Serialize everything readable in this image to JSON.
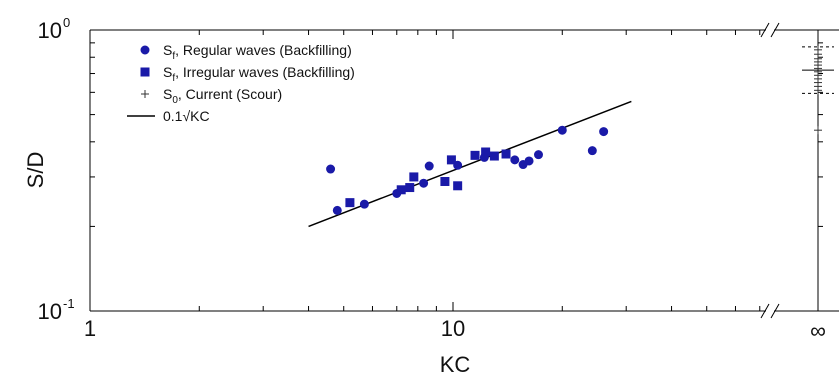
{
  "chart_data": {
    "type": "scatter",
    "xlabel": "KC",
    "ylabel": "S/D",
    "x_scale": "log",
    "y_scale": "log",
    "xlim": [
      1,
      70
    ],
    "ylim": [
      0.1,
      1
    ],
    "x_ticks": [
      {
        "value": 1,
        "label": "1"
      },
      {
        "value": 10,
        "label": "10"
      }
    ],
    "x_infinity_label": "∞",
    "y_ticks": [
      {
        "value": 0.1,
        "base": "10",
        "exp": "-1"
      },
      {
        "value": 1,
        "base": "10",
        "exp": "0"
      }
    ],
    "grid": false,
    "legend_position": "top-left",
    "legend": [
      {
        "id": "regular",
        "sym": "S",
        "sub": "f",
        "text": ", Regular waves (Backfilling)",
        "marker": "circle"
      },
      {
        "id": "irregular",
        "sym": "S",
        "sub": "f",
        "text": ", Irregular waves (Backfilling)",
        "marker": "square"
      },
      {
        "id": "current",
        "sym": "S",
        "sub": "0",
        "text": ", Current (Scour)",
        "marker": "plus"
      },
      {
        "id": "fit",
        "sym": "",
        "sub": "",
        "text": "0.1√KC",
        "marker": "line"
      }
    ],
    "series": [
      {
        "id": "regular",
        "marker": "circle",
        "color": "#1a1aa8",
        "points": [
          {
            "x": 4.6,
            "y": 0.32
          },
          {
            "x": 4.8,
            "y": 0.228
          },
          {
            "x": 5.7,
            "y": 0.24
          },
          {
            "x": 7.0,
            "y": 0.262
          },
          {
            "x": 8.3,
            "y": 0.285
          },
          {
            "x": 8.6,
            "y": 0.328
          },
          {
            "x": 10.3,
            "y": 0.33
          },
          {
            "x": 12.2,
            "y": 0.352
          },
          {
            "x": 14.8,
            "y": 0.345
          },
          {
            "x": 15.6,
            "y": 0.332
          },
          {
            "x": 16.2,
            "y": 0.342
          },
          {
            "x": 17.2,
            "y": 0.36
          },
          {
            "x": 20.0,
            "y": 0.44
          },
          {
            "x": 24.2,
            "y": 0.372
          },
          {
            "x": 26.0,
            "y": 0.435
          }
        ]
      },
      {
        "id": "irregular",
        "marker": "square",
        "color": "#1a1aa8",
        "points": [
          {
            "x": 5.2,
            "y": 0.243
          },
          {
            "x": 7.2,
            "y": 0.27
          },
          {
            "x": 7.6,
            "y": 0.275
          },
          {
            "x": 7.8,
            "y": 0.3
          },
          {
            "x": 9.5,
            "y": 0.289
          },
          {
            "x": 9.9,
            "y": 0.345
          },
          {
            "x": 10.3,
            "y": 0.279
          },
          {
            "x": 11.5,
            "y": 0.358
          },
          {
            "x": 12.3,
            "y": 0.368
          },
          {
            "x": 13.0,
            "y": 0.356
          },
          {
            "x": 14.0,
            "y": 0.362
          }
        ]
      },
      {
        "id": "current",
        "marker": "plus",
        "color": "#333333",
        "points_at_infinity": [
          0.85,
          0.82,
          0.79,
          0.77,
          0.75,
          0.73,
          0.71,
          0.69,
          0.67,
          0.65,
          0.63,
          0.61,
          0.44
        ]
      },
      {
        "id": "fit",
        "type": "line",
        "formula": "0.1*sqrt(KC)",
        "x_range": [
          4,
          31
        ],
        "color": "#000000"
      }
    ]
  }
}
